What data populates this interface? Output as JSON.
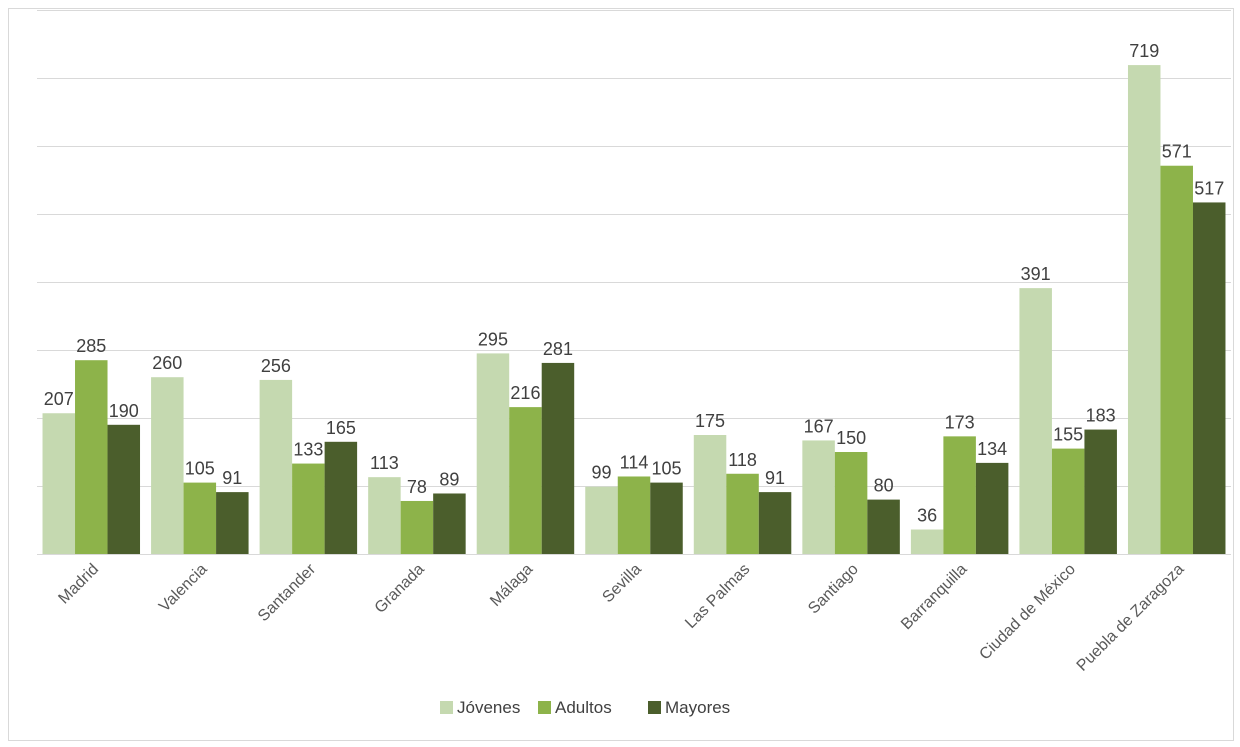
{
  "chart_data": {
    "type": "bar",
    "categories": [
      "Madrid",
      "Valencia",
      "Santander",
      "Granada",
      "Málaga",
      "Sevilla",
      "Las Palmas",
      "Santiago",
      "Barranquilla",
      "Ciudad de México",
      "Puebla de Zaragoza"
    ],
    "series": [
      {
        "name": "Jóvenes",
        "color": "#c5d9b0",
        "values": [
          207,
          260,
          256,
          113,
          295,
          99,
          175,
          167,
          36,
          391,
          719
        ]
      },
      {
        "name": "Adultos",
        "color": "#8db34a",
        "values": [
          285,
          105,
          133,
          78,
          216,
          114,
          118,
          150,
          173,
          155,
          571
        ]
      },
      {
        "name": "Mayores",
        "color": "#4b5e2c",
        "values": [
          190,
          91,
          165,
          89,
          281,
          105,
          91,
          80,
          134,
          183,
          517
        ]
      }
    ],
    "ylim": [
      0,
      800
    ],
    "grid": true,
    "legend_position": "bottom",
    "data_labels": true,
    "axis_label_color": "#595959",
    "grid_color": "#d9d9d9"
  }
}
